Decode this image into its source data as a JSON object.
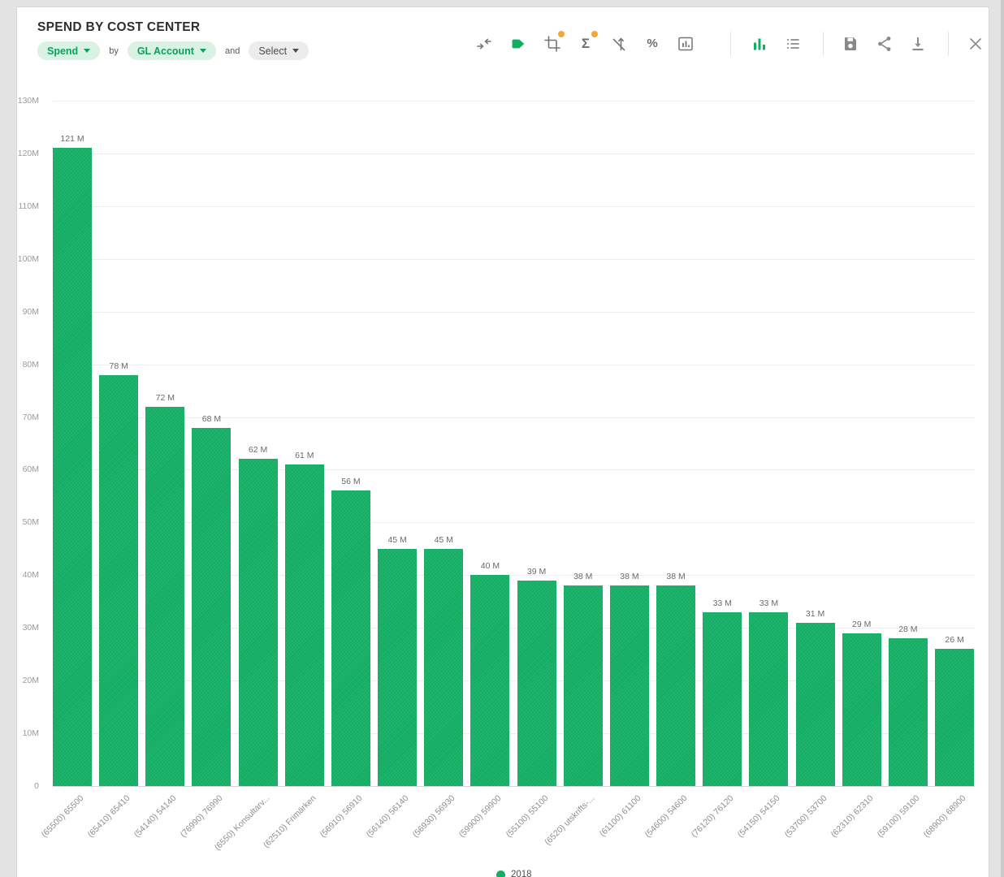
{
  "header": {
    "title": "SPEND BY COST CENTER",
    "controls": {
      "measure": "Spend",
      "by": "by",
      "dimension": "GL Account",
      "and": "and",
      "secondary": "Select"
    }
  },
  "toolbar": {
    "icons": [
      "merge-arrows-icon",
      "tag-icon",
      "crop-icon",
      "sigma-icon",
      "trend-off-icon",
      "percent-icon",
      "chart-box-icon",
      "bar-chart-view-icon",
      "list-view-icon",
      "save-icon",
      "share-icon",
      "download-icon",
      "close-icon"
    ],
    "badged_icons": [
      "crop-icon",
      "sigma-icon"
    ],
    "active_icon": "bar-chart-view-icon"
  },
  "chart_data": {
    "type": "bar",
    "title": "SPEND BY COST CENTER",
    "categories": [
      "(65500) 65500",
      "(65410) 65410",
      "(54140) 54140",
      "(76990) 76990",
      "(6550) Konsultarv...",
      "(62510) Frimärken",
      "(56910) 56910",
      "(56140) 56140",
      "(56930) 56930",
      "(59900) 59900",
      "(55100) 55100",
      "(6520) utskrifts-...",
      "(61100) 61100",
      "(54600) 54600",
      "(76120) 76120",
      "(54150) 54150",
      "(53700) 53700",
      "(62310) 62310",
      "(59100) 59100",
      "(68900) 68900"
    ],
    "values": [
      121,
      78,
      72,
      68,
      62,
      61,
      56,
      45,
      45,
      40,
      39,
      38,
      38,
      38,
      33,
      33,
      31,
      29,
      28,
      26
    ],
    "value_labels": [
      "121 M",
      "78 M",
      "72 M",
      "68 M",
      "62 M",
      "61 M",
      "56 M",
      "45 M",
      "45 M",
      "40 M",
      "39 M",
      "38 M",
      "38 M",
      "38 M",
      "33 M",
      "33 M",
      "31 M",
      "29 M",
      "28 M",
      "26 M"
    ],
    "unit": "M",
    "xlabel": "",
    "ylabel": "",
    "y_tick_values": [
      130,
      120,
      110,
      100,
      90,
      80,
      70,
      60,
      50,
      40,
      30,
      20,
      10,
      0
    ],
    "y_tick_labels": [
      "130M",
      "120M",
      "110M",
      "100M",
      "90M",
      "80M",
      "70M",
      "60M",
      "50M",
      "40M",
      "30M",
      "20M",
      "10M",
      "0"
    ],
    "ylim": [
      0,
      130
    ],
    "grid": true,
    "legend_position": "bottom",
    "series": [
      {
        "name": "2018",
        "color": "#13ae63"
      }
    ]
  },
  "legend": {
    "label": "2018",
    "color": "#13ae63"
  },
  "colors": {
    "bar": "#13ae63",
    "accent_green": "#0ca05a",
    "pill_green_bg": "#d9f2e4",
    "pill_gray_bg": "#ececec",
    "badge_orange": "#f0a73c",
    "icon_gray": "#757575",
    "page_bg": "#e3e3e3",
    "card_bg": "#ffffff"
  }
}
